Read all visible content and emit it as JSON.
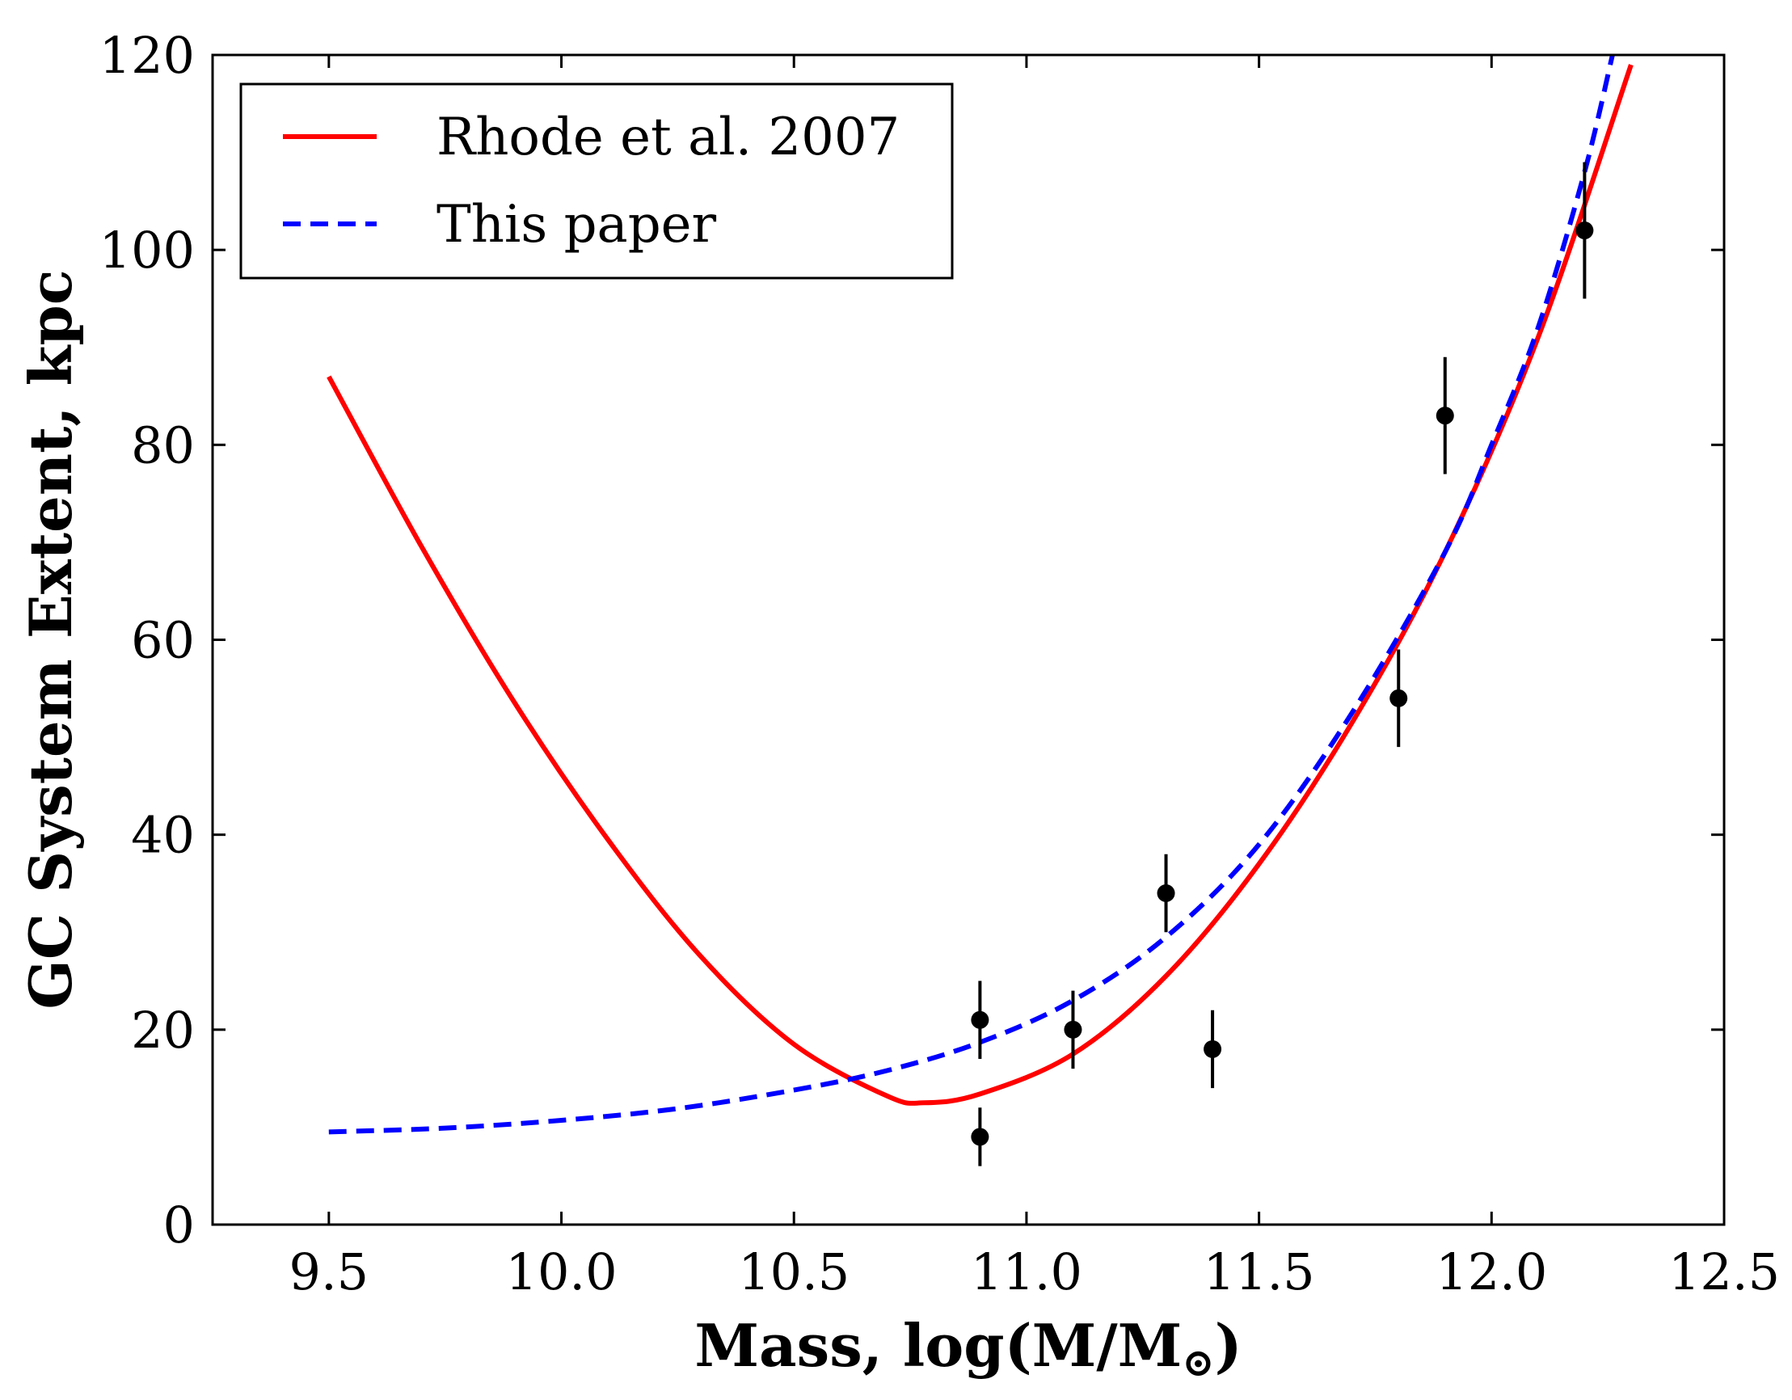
{
  "chart_data": {
    "type": "line",
    "title": "",
    "xlabel": "Mass, log(M/M",
    "xlabel_sub": "⊙",
    "xlabel_close": ")",
    "ylabel": "GC System Extent, kpc",
    "xlim": [
      9.25,
      12.5
    ],
    "ylim": [
      0,
      120
    ],
    "xticks": [
      9.5,
      10.0,
      10.5,
      11.0,
      11.5,
      12.0,
      12.5
    ],
    "xtick_labels": [
      "9.5",
      "10.0",
      "10.5",
      "11.0",
      "11.5",
      "12.0",
      "12.5"
    ],
    "yticks": [
      0,
      20,
      40,
      60,
      80,
      100,
      120
    ],
    "ytick_labels": [
      "0",
      "20",
      "40",
      "60",
      "80",
      "100",
      "120"
    ],
    "legend": {
      "position": "top-left",
      "entries": [
        {
          "label": "Rhode et al. 2007",
          "color": "#ff0000",
          "style": "solid"
        },
        {
          "label": "This paper",
          "color": "#0000ff",
          "style": "dashed"
        }
      ]
    },
    "series": [
      {
        "name": "Rhode et al. 2007",
        "color": "#ff0000",
        "style": "solid",
        "x": [
          9.5,
          9.7,
          9.9,
          10.1,
          10.3,
          10.5,
          10.7,
          10.78,
          10.9,
          11.1,
          11.3,
          11.5,
          11.7,
          11.9,
          12.1,
          12.3
        ],
        "y": [
          87,
          69.5,
          53.5,
          39.5,
          27.5,
          18.5,
          13.2,
          12.5,
          13.4,
          17.5,
          25.5,
          37.0,
          51.5,
          69.0,
          91.0,
          119.0
        ]
      },
      {
        "name": "This paper",
        "color": "#0000ff",
        "style": "dashed",
        "x": [
          9.5,
          9.75,
          10.0,
          10.25,
          10.5,
          10.7,
          10.9,
          11.1,
          11.3,
          11.5,
          11.7,
          11.9,
          12.0,
          12.1,
          12.2,
          12.26
        ],
        "y": [
          9.5,
          9.9,
          10.7,
          11.9,
          13.8,
          15.8,
          18.7,
          23.0,
          29.5,
          39.0,
          52.5,
          69.0,
          80.0,
          92.0,
          108.0,
          120.0
        ]
      }
    ],
    "points": {
      "name": "data",
      "color": "#000000",
      "x": [
        10.9,
        10.9,
        11.1,
        11.3,
        11.4,
        11.8,
        11.9,
        12.2
      ],
      "y": [
        21,
        9,
        20,
        34,
        18,
        54,
        83,
        102
      ],
      "yerr": [
        4,
        3,
        4,
        4,
        4,
        5,
        6,
        7
      ]
    }
  }
}
